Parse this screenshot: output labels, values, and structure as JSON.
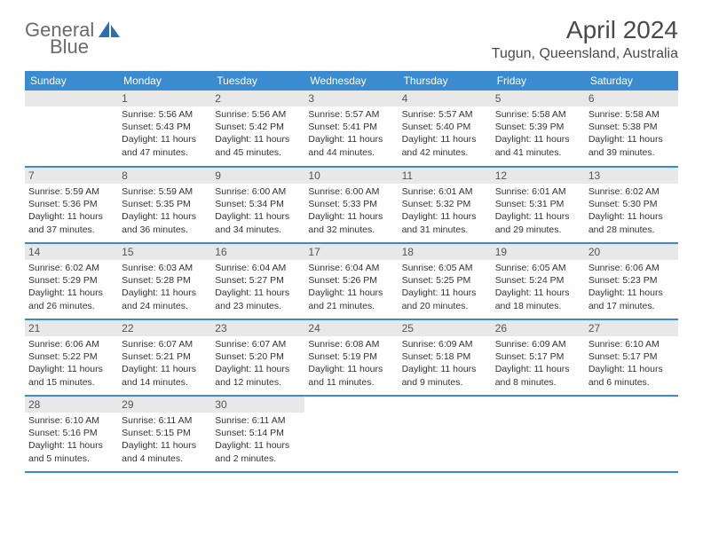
{
  "logo": {
    "text1": "General",
    "text2": "Blue"
  },
  "title": "April 2024",
  "location": "Tugun, Queensland, Australia",
  "colors": {
    "header_bg": "#3b8bd0",
    "header_text": "#ffffff",
    "daynum_bg": "#e8e8e8",
    "logo_text": "#6a6a6a",
    "logo_icon": "#2a6fb0"
  },
  "weekdays": [
    "Sunday",
    "Monday",
    "Tuesday",
    "Wednesday",
    "Thursday",
    "Friday",
    "Saturday"
  ],
  "weeks": [
    [
      {
        "n": "",
        "lines": [
          "",
          "",
          "",
          ""
        ]
      },
      {
        "n": "1",
        "lines": [
          "Sunrise: 5:56 AM",
          "Sunset: 5:43 PM",
          "Daylight: 11 hours",
          "and 47 minutes."
        ]
      },
      {
        "n": "2",
        "lines": [
          "Sunrise: 5:56 AM",
          "Sunset: 5:42 PM",
          "Daylight: 11 hours",
          "and 45 minutes."
        ]
      },
      {
        "n": "3",
        "lines": [
          "Sunrise: 5:57 AM",
          "Sunset: 5:41 PM",
          "Daylight: 11 hours",
          "and 44 minutes."
        ]
      },
      {
        "n": "4",
        "lines": [
          "Sunrise: 5:57 AM",
          "Sunset: 5:40 PM",
          "Daylight: 11 hours",
          "and 42 minutes."
        ]
      },
      {
        "n": "5",
        "lines": [
          "Sunrise: 5:58 AM",
          "Sunset: 5:39 PM",
          "Daylight: 11 hours",
          "and 41 minutes."
        ]
      },
      {
        "n": "6",
        "lines": [
          "Sunrise: 5:58 AM",
          "Sunset: 5:38 PM",
          "Daylight: 11 hours",
          "and 39 minutes."
        ]
      }
    ],
    [
      {
        "n": "7",
        "lines": [
          "Sunrise: 5:59 AM",
          "Sunset: 5:36 PM",
          "Daylight: 11 hours",
          "and 37 minutes."
        ]
      },
      {
        "n": "8",
        "lines": [
          "Sunrise: 5:59 AM",
          "Sunset: 5:35 PM",
          "Daylight: 11 hours",
          "and 36 minutes."
        ]
      },
      {
        "n": "9",
        "lines": [
          "Sunrise: 6:00 AM",
          "Sunset: 5:34 PM",
          "Daylight: 11 hours",
          "and 34 minutes."
        ]
      },
      {
        "n": "10",
        "lines": [
          "Sunrise: 6:00 AM",
          "Sunset: 5:33 PM",
          "Daylight: 11 hours",
          "and 32 minutes."
        ]
      },
      {
        "n": "11",
        "lines": [
          "Sunrise: 6:01 AM",
          "Sunset: 5:32 PM",
          "Daylight: 11 hours",
          "and 31 minutes."
        ]
      },
      {
        "n": "12",
        "lines": [
          "Sunrise: 6:01 AM",
          "Sunset: 5:31 PM",
          "Daylight: 11 hours",
          "and 29 minutes."
        ]
      },
      {
        "n": "13",
        "lines": [
          "Sunrise: 6:02 AM",
          "Sunset: 5:30 PM",
          "Daylight: 11 hours",
          "and 28 minutes."
        ]
      }
    ],
    [
      {
        "n": "14",
        "lines": [
          "Sunrise: 6:02 AM",
          "Sunset: 5:29 PM",
          "Daylight: 11 hours",
          "and 26 minutes."
        ]
      },
      {
        "n": "15",
        "lines": [
          "Sunrise: 6:03 AM",
          "Sunset: 5:28 PM",
          "Daylight: 11 hours",
          "and 24 minutes."
        ]
      },
      {
        "n": "16",
        "lines": [
          "Sunrise: 6:04 AM",
          "Sunset: 5:27 PM",
          "Daylight: 11 hours",
          "and 23 minutes."
        ]
      },
      {
        "n": "17",
        "lines": [
          "Sunrise: 6:04 AM",
          "Sunset: 5:26 PM",
          "Daylight: 11 hours",
          "and 21 minutes."
        ]
      },
      {
        "n": "18",
        "lines": [
          "Sunrise: 6:05 AM",
          "Sunset: 5:25 PM",
          "Daylight: 11 hours",
          "and 20 minutes."
        ]
      },
      {
        "n": "19",
        "lines": [
          "Sunrise: 6:05 AM",
          "Sunset: 5:24 PM",
          "Daylight: 11 hours",
          "and 18 minutes."
        ]
      },
      {
        "n": "20",
        "lines": [
          "Sunrise: 6:06 AM",
          "Sunset: 5:23 PM",
          "Daylight: 11 hours",
          "and 17 minutes."
        ]
      }
    ],
    [
      {
        "n": "21",
        "lines": [
          "Sunrise: 6:06 AM",
          "Sunset: 5:22 PM",
          "Daylight: 11 hours",
          "and 15 minutes."
        ]
      },
      {
        "n": "22",
        "lines": [
          "Sunrise: 6:07 AM",
          "Sunset: 5:21 PM",
          "Daylight: 11 hours",
          "and 14 minutes."
        ]
      },
      {
        "n": "23",
        "lines": [
          "Sunrise: 6:07 AM",
          "Sunset: 5:20 PM",
          "Daylight: 11 hours",
          "and 12 minutes."
        ]
      },
      {
        "n": "24",
        "lines": [
          "Sunrise: 6:08 AM",
          "Sunset: 5:19 PM",
          "Daylight: 11 hours",
          "and 11 minutes."
        ]
      },
      {
        "n": "25",
        "lines": [
          "Sunrise: 6:09 AM",
          "Sunset: 5:18 PM",
          "Daylight: 11 hours",
          "and 9 minutes."
        ]
      },
      {
        "n": "26",
        "lines": [
          "Sunrise: 6:09 AM",
          "Sunset: 5:17 PM",
          "Daylight: 11 hours",
          "and 8 minutes."
        ]
      },
      {
        "n": "27",
        "lines": [
          "Sunrise: 6:10 AM",
          "Sunset: 5:17 PM",
          "Daylight: 11 hours",
          "and 6 minutes."
        ]
      }
    ],
    [
      {
        "n": "28",
        "lines": [
          "Sunrise: 6:10 AM",
          "Sunset: 5:16 PM",
          "Daylight: 11 hours",
          "and 5 minutes."
        ]
      },
      {
        "n": "29",
        "lines": [
          "Sunrise: 6:11 AM",
          "Sunset: 5:15 PM",
          "Daylight: 11 hours",
          "and 4 minutes."
        ]
      },
      {
        "n": "30",
        "lines": [
          "Sunrise: 6:11 AM",
          "Sunset: 5:14 PM",
          "Daylight: 11 hours",
          "and 2 minutes."
        ]
      },
      null,
      null,
      null,
      null
    ]
  ]
}
